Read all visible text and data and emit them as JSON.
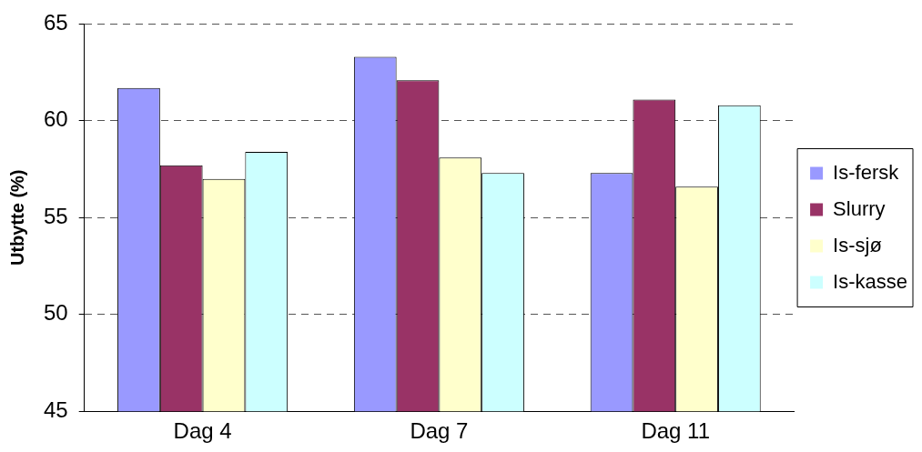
{
  "chart_data": {
    "type": "bar",
    "ylabel": "Utbytte (%)",
    "categories": [
      "Dag 4",
      "Dag 7",
      "Dag 11"
    ],
    "series": [
      {
        "name": "Is-fersk",
        "color": "#9999ff",
        "values": [
          61.7,
          63.3,
          57.3
        ]
      },
      {
        "name": "Slurry",
        "color": "#993366",
        "values": [
          57.7,
          62.1,
          61.1
        ]
      },
      {
        "name": "Is-sjø",
        "color": "#ffffcc",
        "values": [
          57.0,
          58.1,
          56.6
        ]
      },
      {
        "name": "Is-kasse",
        "color": "#ccffff",
        "values": [
          58.4,
          57.3,
          60.8
        ]
      }
    ],
    "ylim": [
      45,
      65
    ],
    "yticks": [
      45,
      50,
      55,
      60,
      65
    ],
    "grid": "y",
    "legend": "right"
  }
}
